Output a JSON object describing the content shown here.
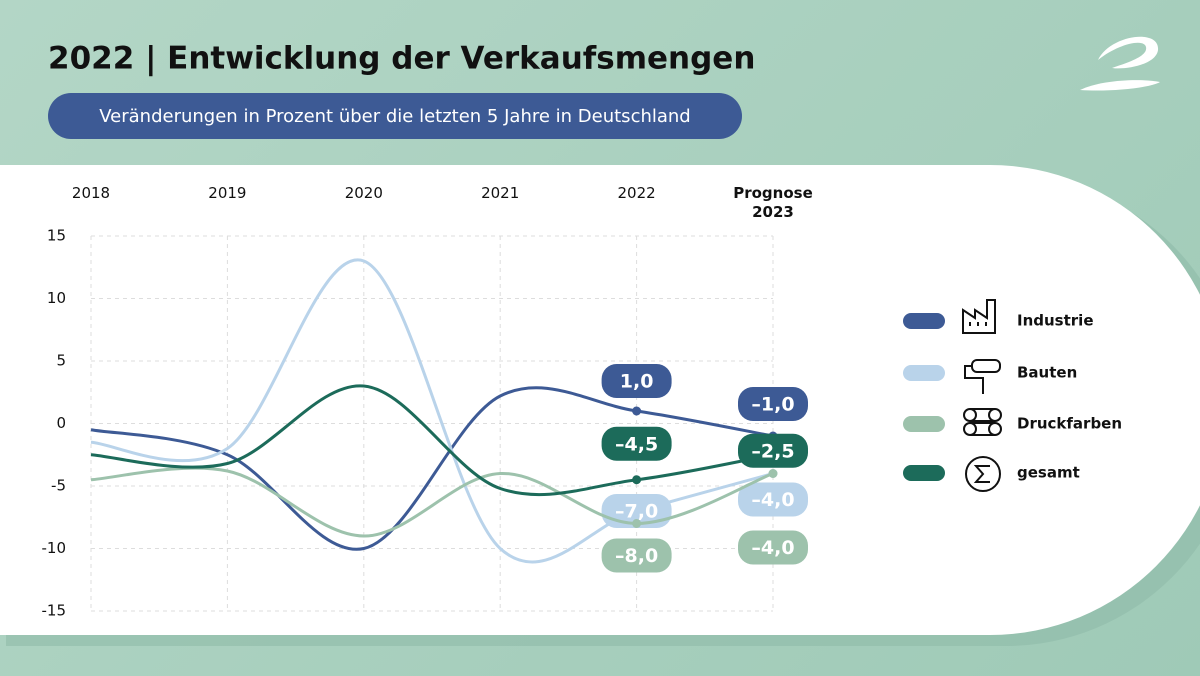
{
  "chart_data": {
    "type": "line",
    "title": "2022 | Entwicklung der Verkaufsmengen",
    "subtitle": "Veränderungen in Prozent über die letzten 5 Jahre in Deutschland",
    "categories": [
      "2018",
      "2019",
      "2020",
      "2021",
      "2022",
      "Prognose 2023"
    ],
    "series": [
      {
        "name": "Industrie",
        "color": "#3d5a95",
        "values": [
          -0.5,
          -2.5,
          -10,
          2.2,
          1.0,
          -1.0
        ],
        "value_labels": [
          null,
          null,
          null,
          null,
          "1,0",
          "–1,0"
        ]
      },
      {
        "name": "Bauten",
        "color": "#b9d3ea",
        "values": [
          -1.5,
          -2,
          13,
          -10,
          -7.0,
          -4.0
        ],
        "value_labels": [
          null,
          null,
          null,
          null,
          "–7,0",
          "–4,0"
        ]
      },
      {
        "name": "Druckfarben",
        "color": "#9dc2ac",
        "values": [
          -4.5,
          -3.8,
          -9,
          -4,
          -8.0,
          -4.0
        ],
        "value_labels": [
          null,
          null,
          null,
          null,
          "–8,0",
          "–4,0"
        ]
      },
      {
        "name": "gesamt",
        "color": "#1c6b5a",
        "values": [
          -2.5,
          -3.2,
          3,
          -5.2,
          -4.5,
          -2.5
        ],
        "value_labels": [
          null,
          null,
          null,
          null,
          "–4,5",
          "–2,5"
        ]
      }
    ],
    "ylim": [
      -15,
      15
    ],
    "yticks": [
      15,
      10,
      5,
      0,
      -5,
      -10,
      -15
    ],
    "grid": true
  }
}
